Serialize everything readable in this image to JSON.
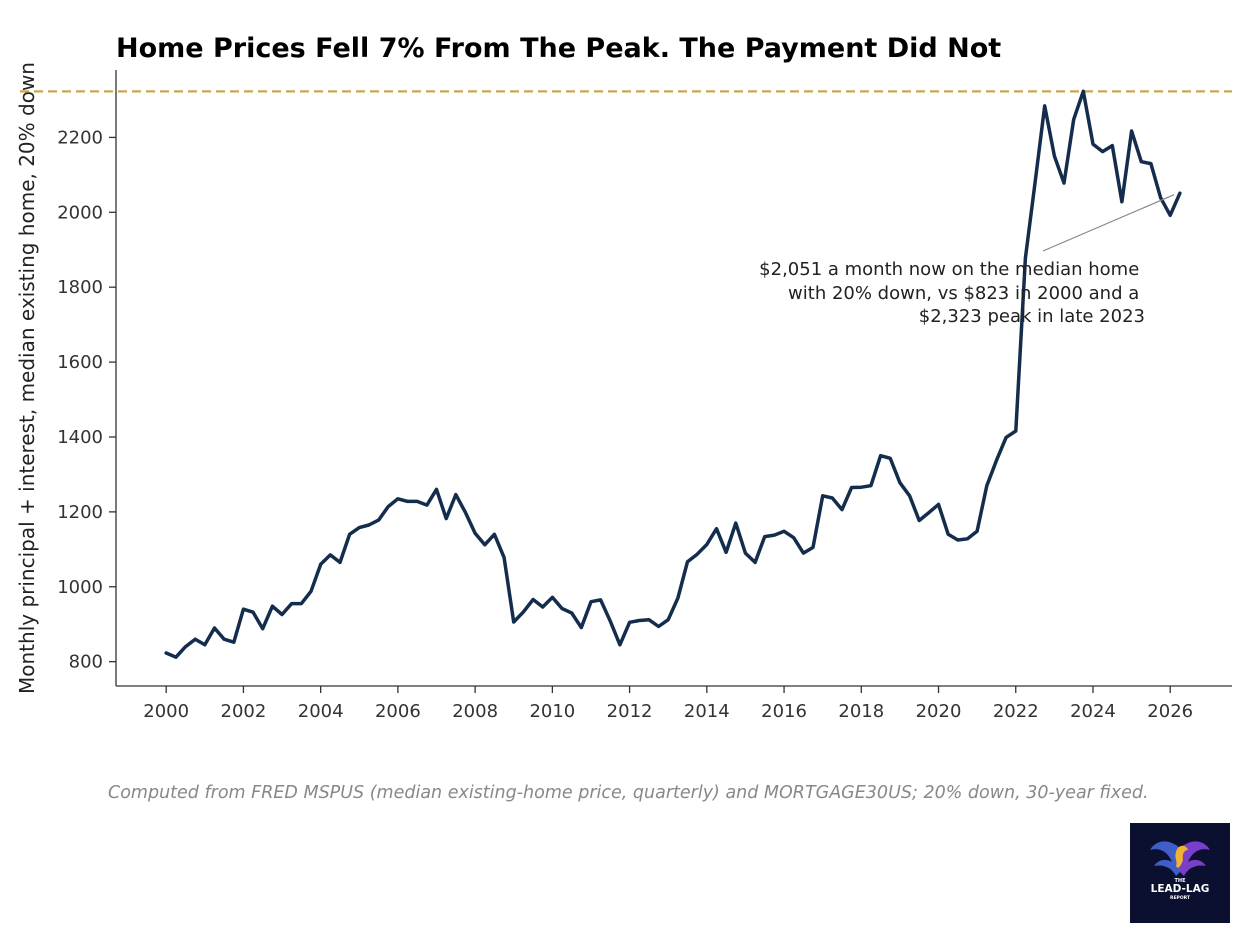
{
  "chart_data": {
    "type": "line",
    "title": "Home Prices Fell 7% From The Peak. The Payment Did Not",
    "xlabel": "",
    "ylabel": "Monthly principal + interest, median existing home, 20% down",
    "xlim": [
      1998.7,
      2027.6
    ],
    "ylim": [
      735,
      2380
    ],
    "xticks": [
      2000,
      2002,
      2004,
      2006,
      2008,
      2010,
      2012,
      2014,
      2016,
      2018,
      2020,
      2022,
      2024,
      2026
    ],
    "yticks": [
      800,
      1000,
      1200,
      1400,
      1600,
      1800,
      2000,
      2200
    ],
    "grid": false,
    "reference_line": {
      "y": 2323,
      "color": "#C9A74E",
      "style": "dashed"
    },
    "annotation": {
      "lines": [
        "$2,051 a month now on the median home",
        "with 20% down, vs $823 in 2000 and a",
        "$2,323 peak in late 2023"
      ],
      "arrow_to": {
        "x": 2026.1,
        "y": 2047
      }
    },
    "series": [
      {
        "color": "#142D4C",
        "x": [
          2000.0,
          2000.25,
          2000.5,
          2000.75,
          2001.0,
          2001.25,
          2001.5,
          2001.75,
          2002.0,
          2002.25,
          2002.5,
          2002.75,
          2003.0,
          2003.25,
          2003.5,
          2003.75,
          2004.0,
          2004.25,
          2004.5,
          2004.75,
          2005.0,
          2005.25,
          2005.5,
          2005.75,
          2006.0,
          2006.25,
          2006.5,
          2006.75,
          2007.0,
          2007.25,
          2007.5,
          2007.75,
          2008.0,
          2008.25,
          2008.5,
          2008.75,
          2009.0,
          2009.25,
          2009.5,
          2009.75,
          2010.0,
          2010.25,
          2010.5,
          2010.75,
          2011.0,
          2011.25,
          2011.5,
          2011.75,
          2012.0,
          2012.25,
          2012.5,
          2012.75,
          2013.0,
          2013.25,
          2013.5,
          2013.75,
          2014.0,
          2014.25,
          2014.5,
          2014.75,
          2015.0,
          2015.25,
          2015.5,
          2015.75,
          2016.0,
          2016.25,
          2016.5,
          2016.75,
          2017.0,
          2017.25,
          2017.5,
          2017.75,
          2018.0,
          2018.25,
          2018.5,
          2018.75,
          2019.0,
          2019.25,
          2019.5,
          2019.75,
          2020.0,
          2020.25,
          2020.5,
          2020.75,
          2021.0,
          2021.25,
          2021.5,
          2021.75,
          2022.0,
          2022.25,
          2022.5,
          2022.75,
          2023.0,
          2023.25,
          2023.5,
          2023.75,
          2024.0,
          2024.25,
          2024.5,
          2024.75,
          2025.0,
          2025.25,
          2025.5,
          2025.75,
          2026.0,
          2026.25
        ],
        "y": [
          823,
          812,
          840,
          860,
          845,
          890,
          860,
          852,
          940,
          932,
          888,
          948,
          926,
          955,
          955,
          988,
          1060,
          1085,
          1065,
          1140,
          1158,
          1165,
          1178,
          1214,
          1235,
          1228,
          1228,
          1218,
          1260,
          1182,
          1246,
          1198,
          1143,
          1112,
          1140,
          1078,
          906,
          933,
          966,
          946,
          972,
          942,
          930,
          891,
          960,
          965,
          908,
          845,
          905,
          910,
          912,
          894,
          912,
          970,
          1067,
          1087,
          1113,
          1155,
          1092,
          1170,
          1090,
          1065,
          1134,
          1138,
          1148,
          1131,
          1090,
          1105,
          1243,
          1237,
          1206,
          1265,
          1266,
          1270,
          1350,
          1343,
          1278,
          1243,
          1177,
          1198,
          1220,
          1140,
          1125,
          1128,
          1148,
          1270,
          1337,
          1399,
          1416,
          1878,
          2080,
          2284,
          2150,
          2078,
          2248,
          2323,
          2182,
          2162,
          2178,
          2028,
          2217,
          2135,
          2130,
          2039,
          1992,
          2051
        ]
      }
    ]
  },
  "source_note": "Computed from FRED MSPUS (median existing-home price, quarterly) and MORTGAGE30US; 20% down, 30-year fixed.",
  "logo": {
    "line1": "THE",
    "line2": "LEAD-LAG",
    "line3": "REPORT",
    "bg_color": "#0B1030"
  }
}
